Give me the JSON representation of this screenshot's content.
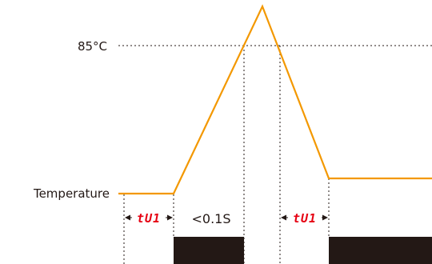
{
  "labels": {
    "threshold": "85°C",
    "temperature": "Temperature",
    "short_interval": "<0.1S",
    "delay_left": "tU1",
    "delay_right": "tU1"
  },
  "colors": {
    "temperature_curve": "#F39800",
    "output_pulse": "#231815",
    "segment_text": "#E60012",
    "guide_lines": "#231815"
  }
}
